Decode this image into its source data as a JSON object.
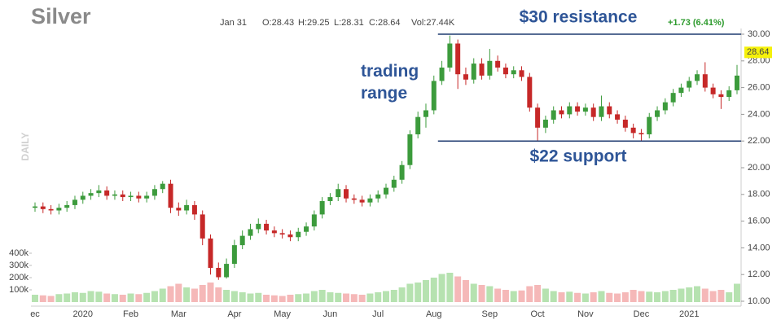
{
  "chart_data": {
    "type": "candlestick",
    "title": "Silver",
    "side_label": "DAILY",
    "header": {
      "date": "Jan 31",
      "open": "O:28.43",
      "high": "H:29.25",
      "low": "L:28.31",
      "close": "C:28.64",
      "volume": "Vol:27.44K",
      "change": "+1.73 (6.41%)"
    },
    "last_price": 28.64,
    "annotation": "trading range",
    "levels": [
      {
        "value": 30,
        "label": "$30 resistance"
      },
      {
        "value": 22,
        "label": "$22 support"
      }
    ],
    "categories": [
      "ec",
      null,
      null,
      null,
      null,
      null,
      "2020",
      null,
      null,
      null,
      null,
      null,
      "Feb",
      null,
      null,
      null,
      null,
      null,
      "Mar",
      null,
      null,
      null,
      null,
      null,
      null,
      "Apr",
      null,
      null,
      null,
      null,
      null,
      "May",
      null,
      null,
      null,
      null,
      null,
      "Jun",
      null,
      null,
      null,
      null,
      null,
      "Jul",
      null,
      null,
      null,
      null,
      null,
      null,
      "Aug",
      null,
      null,
      null,
      null,
      null,
      null,
      "Sep",
      null,
      null,
      null,
      null,
      null,
      "Oct",
      null,
      null,
      null,
      null,
      null,
      "Nov",
      null,
      null,
      null,
      null,
      null,
      null,
      "Dec",
      null,
      null,
      null,
      null,
      null,
      "2021",
      null,
      null,
      null,
      null,
      null,
      null
    ],
    "open": [
      17.0,
      17.1,
      16.9,
      16.8,
      17.0,
      17.2,
      17.6,
      17.9,
      18.1,
      18.3,
      17.9,
      18.0,
      17.8,
      17.9,
      17.7,
      17.9,
      18.4,
      18.8,
      17.0,
      16.8,
      17.2,
      16.5,
      14.7,
      12.5,
      11.8,
      12.8,
      14.2,
      14.9,
      15.4,
      15.8,
      15.3,
      15.1,
      15.0,
      14.8,
      15.2,
      15.6,
      16.5,
      17.5,
      17.8,
      18.4,
      17.7,
      17.6,
      17.4,
      17.7,
      18.0,
      18.5,
      19.1,
      20.2,
      22.5,
      23.8,
      24.3,
      26.5,
      27.5,
      29.3,
      27.0,
      26.6,
      27.8,
      26.9,
      28.0,
      27.5,
      27.0,
      27.3,
      26.8,
      24.5,
      23.0,
      23.6,
      24.3,
      24.0,
      24.6,
      24.2,
      24.5,
      23.8,
      24.6,
      24.0,
      23.6,
      23.0,
      22.6,
      22.5,
      23.8,
      24.3,
      24.9,
      25.6,
      26.0,
      26.5,
      27.0,
      26.0,
      25.5,
      25.3,
      25.8
    ],
    "high": [
      17.4,
      17.4,
      17.2,
      17.3,
      17.5,
      17.9,
      18.2,
      18.4,
      18.7,
      18.6,
      18.3,
      18.3,
      18.2,
      18.2,
      18.2,
      18.7,
      19.0,
      19.1,
      17.4,
      17.6,
      17.5,
      16.8,
      15.0,
      12.9,
      13.2,
      14.6,
      15.3,
      15.8,
      16.2,
      16.1,
      15.6,
      15.4,
      15.3,
      15.5,
      15.9,
      16.8,
      17.8,
      18.1,
      18.8,
      18.7,
      18.0,
      17.9,
      18.0,
      18.3,
      18.8,
      19.4,
      20.5,
      22.8,
      24.2,
      24.8,
      26.9,
      28.0,
      29.9,
      29.6,
      27.5,
      28.2,
      28.2,
      28.9,
      28.4,
      27.8,
      27.6,
      27.6,
      27.1,
      24.8,
      23.9,
      24.6,
      24.6,
      24.9,
      24.9,
      24.8,
      24.8,
      25.4,
      24.9,
      24.3,
      23.9,
      23.3,
      22.9,
      24.1,
      24.6,
      25.2,
      25.9,
      26.3,
      26.8,
      27.3,
      27.9,
      26.3,
      25.8,
      26.1,
      27.7
    ],
    "low": [
      16.7,
      16.6,
      16.5,
      16.5,
      16.7,
      16.9,
      17.3,
      17.6,
      17.8,
      17.6,
      17.6,
      17.5,
      17.5,
      17.4,
      17.4,
      17.6,
      18.1,
      16.6,
      16.4,
      16.5,
      16.1,
      14.2,
      12.0,
      11.6,
      11.7,
      12.5,
      13.9,
      14.6,
      15.1,
      15.0,
      14.8,
      14.7,
      14.5,
      14.5,
      14.9,
      15.3,
      16.2,
      17.2,
      17.5,
      17.4,
      17.3,
      17.1,
      17.1,
      17.4,
      17.7,
      18.2,
      18.8,
      19.9,
      22.2,
      23.0,
      24.0,
      26.2,
      27.2,
      25.9,
      26.2,
      26.3,
      26.6,
      26.6,
      27.2,
      26.7,
      26.7,
      26.5,
      24.2,
      22.0,
      22.6,
      23.3,
      23.7,
      23.7,
      23.9,
      23.9,
      23.5,
      23.5,
      23.7,
      23.3,
      22.7,
      22.2,
      22.0,
      22.2,
      23.5,
      24.0,
      24.6,
      25.3,
      25.7,
      26.2,
      25.7,
      25.2,
      24.4,
      25.0,
      25.5
    ],
    "close": [
      17.1,
      16.9,
      16.8,
      17.0,
      17.2,
      17.6,
      17.9,
      18.1,
      18.3,
      17.9,
      18.0,
      17.8,
      17.9,
      17.7,
      17.9,
      18.4,
      18.8,
      17.0,
      16.8,
      17.2,
      16.5,
      14.7,
      12.5,
      11.8,
      12.8,
      14.2,
      14.9,
      15.4,
      15.8,
      15.3,
      15.1,
      15.0,
      14.8,
      15.2,
      15.6,
      16.5,
      17.5,
      17.8,
      18.4,
      17.7,
      17.6,
      17.4,
      17.7,
      18.0,
      18.5,
      19.1,
      20.2,
      22.5,
      23.8,
      24.3,
      26.5,
      27.5,
      29.3,
      27.0,
      26.6,
      27.8,
      26.9,
      28.0,
      27.5,
      27.0,
      27.3,
      26.8,
      24.5,
      23.0,
      23.6,
      24.3,
      24.0,
      24.6,
      24.2,
      24.5,
      23.8,
      24.6,
      24.0,
      23.6,
      23.0,
      22.6,
      22.5,
      23.8,
      24.3,
      24.9,
      25.6,
      26.0,
      26.5,
      27.0,
      26.0,
      25.5,
      25.3,
      25.8,
      26.9
    ],
    "volume": [
      60000,
      55000,
      50000,
      65000,
      70000,
      80000,
      75000,
      90000,
      85000,
      70000,
      65000,
      60000,
      70000,
      65000,
      75000,
      90000,
      110000,
      130000,
      150000,
      120000,
      110000,
      140000,
      160000,
      120000,
      100000,
      90000,
      80000,
      70000,
      75000,
      60000,
      55000,
      50000,
      60000,
      65000,
      70000,
      90000,
      100000,
      80000,
      75000,
      70000,
      65000,
      60000,
      70000,
      80000,
      90000,
      100000,
      120000,
      150000,
      160000,
      180000,
      200000,
      230000,
      240000,
      210000,
      180000,
      150000,
      140000,
      130000,
      110000,
      100000,
      90000,
      95000,
      130000,
      140000,
      110000,
      90000,
      80000,
      85000,
      75000,
      70000,
      80000,
      90000,
      75000,
      70000,
      80000,
      100000,
      90000,
      85000,
      80000,
      90000,
      100000,
      110000,
      120000,
      130000,
      110000,
      90000,
      100000,
      80000,
      150000
    ],
    "up_color": "#3c9b3c",
    "down_color": "#c62828",
    "volume_up_color": "#b6e2b0",
    "volume_down_color": "#f5b8b8",
    "level_color": "#1f3b70",
    "annotation_color": "#2e5597",
    "ylim": [
      10,
      30
    ],
    "yticks": [
      {
        "value": 10,
        "label": "10.00"
      },
      {
        "value": 12,
        "label": "12.00"
      },
      {
        "value": 14,
        "label": "14.00"
      },
      {
        "value": 16,
        "label": "16.00"
      },
      {
        "value": 18,
        "label": "18.00"
      },
      {
        "value": 20,
        "label": "20.00"
      },
      {
        "value": 22,
        "label": "22.00"
      },
      {
        "value": 24,
        "label": "24.00"
      },
      {
        "value": 26,
        "label": "26.00"
      },
      {
        "value": 28,
        "label": "28.00"
      },
      {
        "value": 30,
        "label": "30.00"
      }
    ],
    "y2lim": [
      0,
      400000
    ],
    "y2ticks": [
      {
        "value": 100000,
        "label": "100k"
      },
      {
        "value": 200000,
        "label": "200k"
      },
      {
        "value": 300000,
        "label": "300k"
      },
      {
        "value": 400000,
        "label": "400k"
      }
    ]
  }
}
